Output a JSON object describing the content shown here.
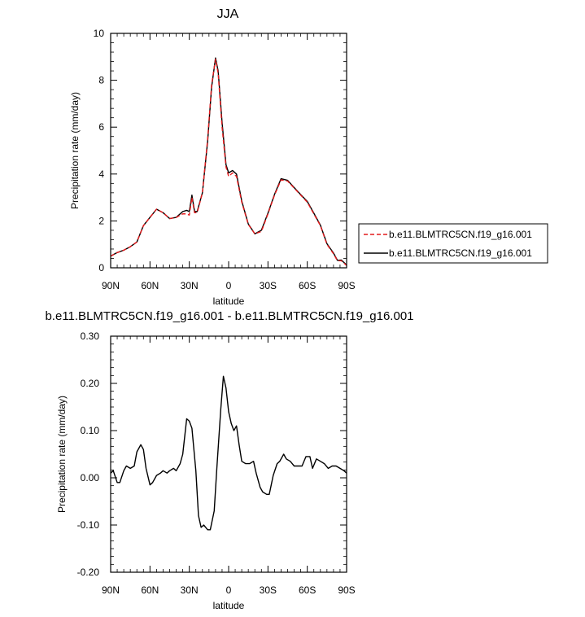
{
  "chart_data": [
    {
      "type": "line",
      "title": "JJA",
      "xlabel": "latitude",
      "ylabel": "Precipitation rate (mm/day)",
      "xlim": [
        90,
        -90
      ],
      "ylim": [
        0,
        10
      ],
      "xticks": [
        90,
        60,
        30,
        0,
        -30,
        -60,
        -90
      ],
      "xtick_labels": [
        "90N",
        "60N",
        "30N",
        "0",
        "30S",
        "60S",
        "90S"
      ],
      "yticks": [
        0,
        2,
        4,
        6,
        8,
        10
      ],
      "ytick_labels": [
        "0",
        "2",
        "4",
        "6",
        "8",
        "10"
      ],
      "legend_position": "right",
      "series": [
        {
          "name": "b.e11.BLMTRC5CN.f19_g16.001",
          "color": "#e41a1c",
          "style": "dashed",
          "x": [
            90,
            85,
            80,
            75,
            70,
            65,
            60,
            55,
            50,
            45,
            40,
            35,
            32,
            30,
            28,
            26,
            24,
            20,
            16,
            13,
            10,
            8,
            5,
            2,
            0,
            -3,
            -6,
            -10,
            -15,
            -20,
            -25,
            -30,
            -35,
            -40,
            -45,
            -50,
            -55,
            -60,
            -65,
            -70,
            -75,
            -80,
            -83,
            -86,
            -90
          ],
          "y": [
            0.5,
            0.65,
            0.75,
            0.9,
            1.1,
            1.8,
            2.15,
            2.5,
            2.35,
            2.1,
            2.15,
            2.3,
            2.3,
            2.25,
            3.0,
            2.35,
            2.35,
            3.2,
            5.5,
            7.8,
            8.9,
            8.3,
            6.0,
            4.3,
            3.9,
            4.05,
            3.9,
            2.8,
            1.85,
            1.45,
            1.55,
            2.3,
            3.1,
            3.75,
            3.7,
            3.4,
            3.1,
            2.8,
            2.3,
            1.8,
            1.0,
            0.6,
            0.3,
            0.3,
            0.1
          ]
        },
        {
          "name": "b.e11.BLMTRC5CN.f19_g16.001",
          "color": "#000000",
          "style": "solid",
          "x": [
            90,
            85,
            80,
            75,
            70,
            65,
            60,
            55,
            50,
            45,
            40,
            35,
            32,
            30,
            28,
            26,
            24,
            20,
            16,
            13,
            10,
            8,
            5,
            2,
            0,
            -3,
            -6,
            -10,
            -15,
            -20,
            -25,
            -30,
            -35,
            -40,
            -45,
            -50,
            -55,
            -60,
            -65,
            -70,
            -75,
            -80,
            -83,
            -86,
            -90
          ],
          "y": [
            0.5,
            0.65,
            0.75,
            0.9,
            1.1,
            1.8,
            2.15,
            2.5,
            2.35,
            2.1,
            2.15,
            2.4,
            2.45,
            2.4,
            3.1,
            2.4,
            2.4,
            3.2,
            5.4,
            7.7,
            8.95,
            8.4,
            6.2,
            4.4,
            4.05,
            4.15,
            4.0,
            2.85,
            1.87,
            1.45,
            1.6,
            2.33,
            3.13,
            3.8,
            3.73,
            3.42,
            3.12,
            2.83,
            2.33,
            1.82,
            1.03,
            0.63,
            0.32,
            0.33,
            0.12
          ]
        }
      ]
    },
    {
      "type": "line",
      "title": "b.e11.BLMTRC5CN.f19_g16.001 - b.e11.BLMTRC5CN.f19_g16.001",
      "xlabel": "latitude",
      "ylabel": "Precipitation rate (mm/day)",
      "xlim": [
        90,
        -90
      ],
      "ylim": [
        -0.2,
        0.3
      ],
      "xticks": [
        90,
        60,
        30,
        0,
        -30,
        -60,
        -90
      ],
      "xtick_labels": [
        "90N",
        "60N",
        "30N",
        "0",
        "30S",
        "60S",
        "90S"
      ],
      "yticks": [
        -0.2,
        -0.1,
        0.0,
        0.1,
        0.2,
        0.3
      ],
      "ytick_labels": [
        "-0.20",
        "-0.10",
        "0.00",
        "0.10",
        "0.20",
        "0.30"
      ],
      "series": [
        {
          "color": "#000000",
          "style": "solid",
          "x": [
            90,
            88,
            85,
            83,
            80,
            78,
            75,
            72,
            70,
            67,
            65,
            63,
            60,
            58,
            55,
            52,
            50,
            47,
            45,
            42,
            40,
            37,
            35,
            32,
            30,
            28,
            25,
            23,
            21,
            19,
            16,
            14,
            11,
            9,
            6,
            4,
            2,
            0,
            -2,
            -4,
            -6,
            -8,
            -10,
            -13,
            -16,
            -19,
            -21,
            -24,
            -26,
            -29,
            -31,
            -34,
            -37,
            -39,
            -42,
            -44,
            -47,
            -50,
            -53,
            -56,
            -59,
            -62,
            -64,
            -67,
            -70,
            -73,
            -76,
            -79,
            -82,
            -85,
            -88,
            -90
          ],
          "y": [
            0.01,
            0.015,
            -0.01,
            -0.01,
            0.015,
            0.025,
            0.02,
            0.025,
            0.055,
            0.07,
            0.06,
            0.02,
            -0.015,
            -0.01,
            0.005,
            0.01,
            0.015,
            0.01,
            0.015,
            0.02,
            0.015,
            0.03,
            0.05,
            0.125,
            0.12,
            0.105,
            0.015,
            -0.08,
            -0.105,
            -0.1,
            -0.11,
            -0.11,
            -0.07,
            0.02,
            0.145,
            0.215,
            0.19,
            0.14,
            0.115,
            0.1,
            0.11,
            0.07,
            0.035,
            0.03,
            0.03,
            0.035,
            0.01,
            -0.02,
            -0.03,
            -0.035,
            -0.035,
            0.005,
            0.03,
            0.035,
            0.05,
            0.04,
            0.035,
            0.025,
            0.025,
            0.025,
            0.045,
            0.045,
            0.02,
            0.04,
            0.035,
            0.03,
            0.02,
            0.025,
            0.025,
            0.02,
            0.015,
            0.01
          ]
        }
      ]
    }
  ]
}
